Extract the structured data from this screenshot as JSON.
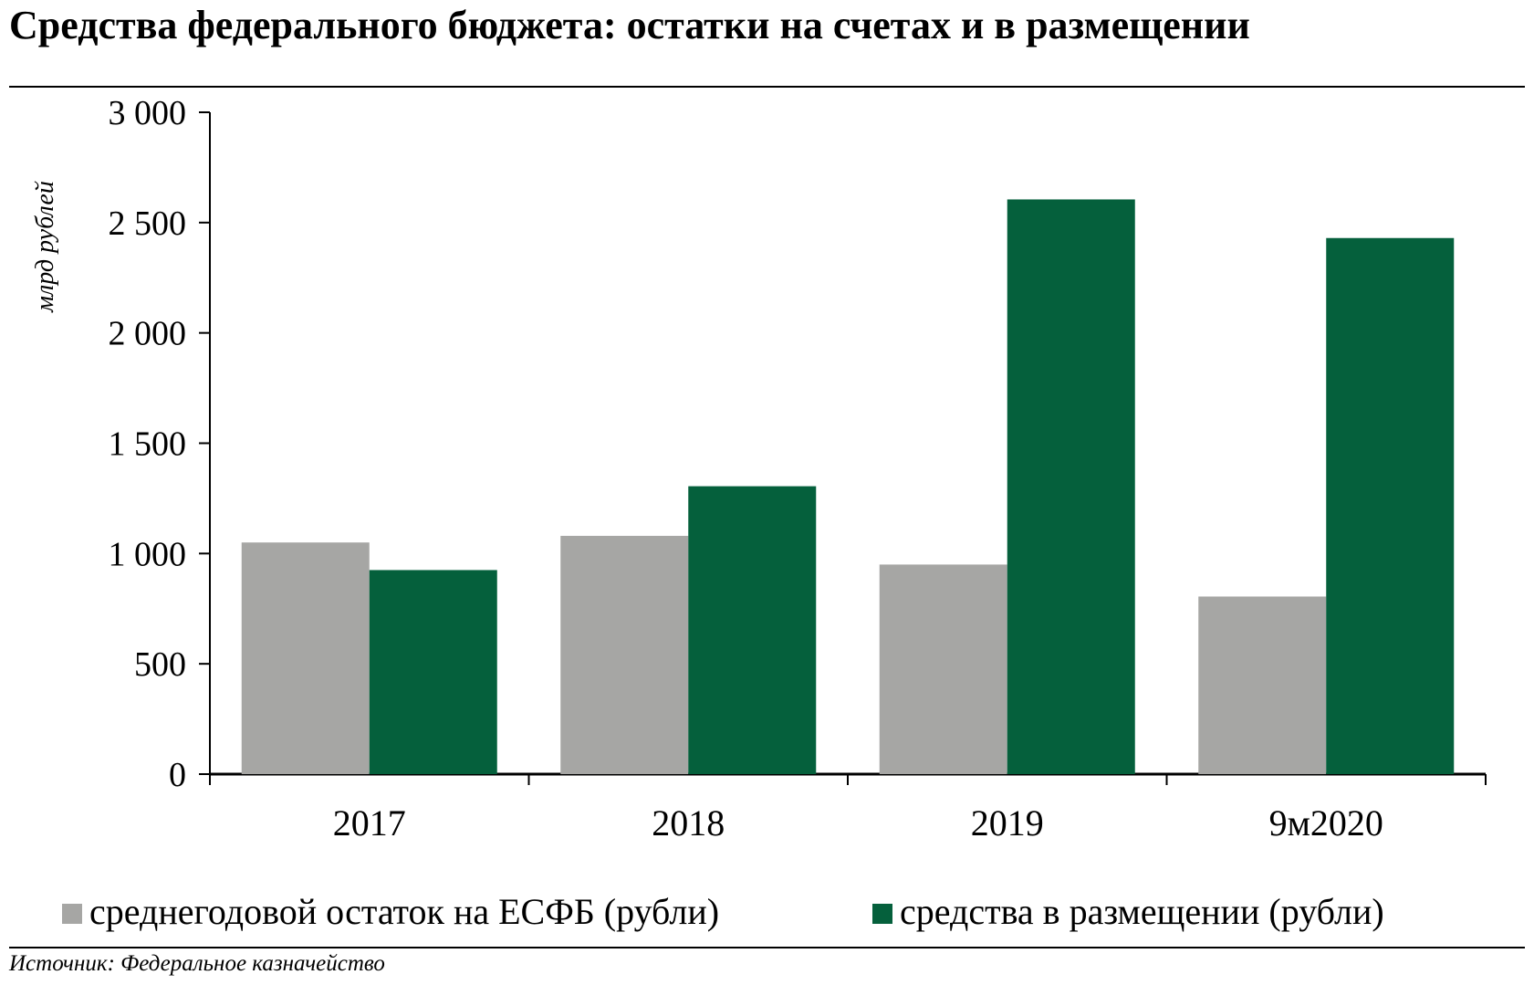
{
  "title": "Средства федерального бюджета: остатки на счетах и в размещении",
  "source": "Источник: Федеральное казначейство",
  "colors": {
    "esfb": "#a6a6a4",
    "placement": "#05603c"
  },
  "chart_data": {
    "type": "bar",
    "title": "Средства федерального бюджета: остатки на счетах и в размещении",
    "xlabel": "",
    "ylabel": "млрд рублей",
    "ylim": [
      0,
      3000
    ],
    "yticks": [
      0,
      500,
      1000,
      1500,
      2000,
      2500,
      3000
    ],
    "ytick_labels": [
      "0",
      "500",
      "1 000",
      "1 500",
      "2 000",
      "2 500",
      "3 000"
    ],
    "categories": [
      "2017",
      "2018",
      "2019",
      "9м2020"
    ],
    "series": [
      {
        "name": "среднегодовой остаток на ЕСФБ (рубли)",
        "color": "#a6a6a4",
        "values": [
          1050,
          1080,
          950,
          805
        ]
      },
      {
        "name": "средства в размещении (рубли)",
        "color": "#05603c",
        "values": [
          925,
          1305,
          2605,
          2430
        ]
      }
    ],
    "grid": false,
    "legend": "bottom"
  }
}
